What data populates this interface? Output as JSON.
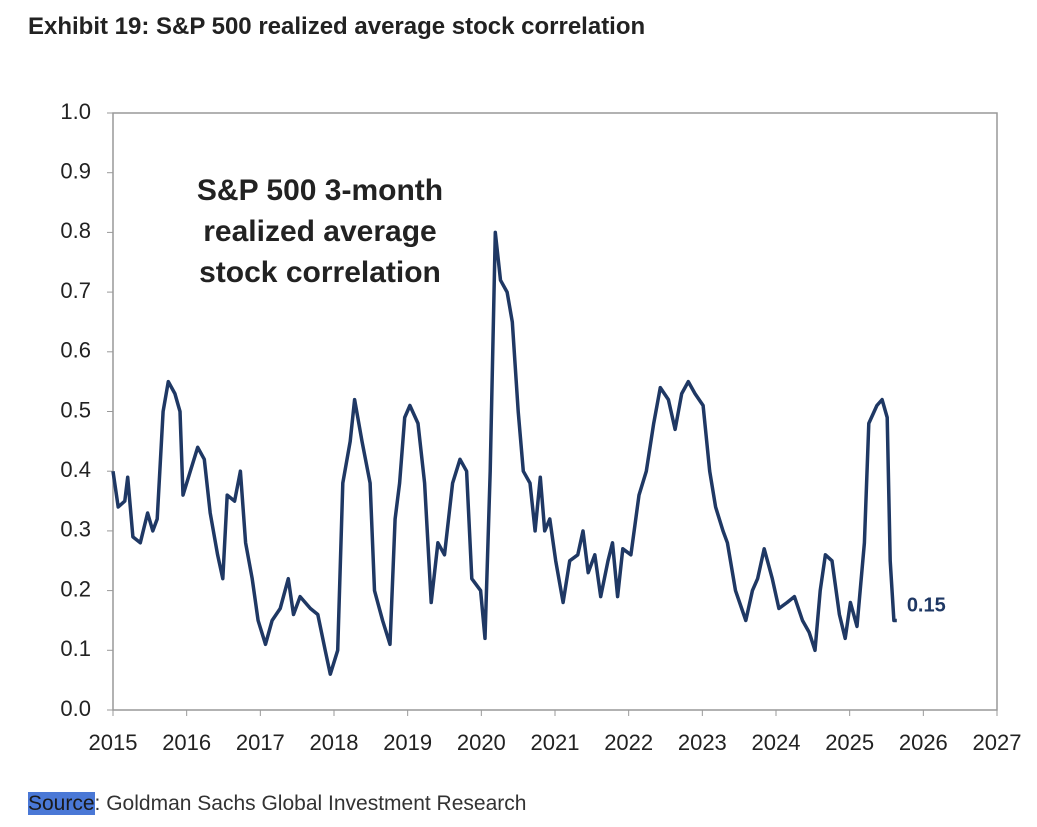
{
  "chart_data": {
    "type": "line",
    "title": "Exhibit 19: S&P 500 realized average stock correlation",
    "annotation_lines": [
      "S&P 500 3-month",
      "realized average",
      "stock correlation"
    ],
    "end_label": "0.15",
    "source_label": "Source",
    "source_text": ": Goldman Sachs Global Investment Research",
    "xlim": [
      2015,
      2027
    ],
    "xticks": [
      2015,
      2016,
      2017,
      2018,
      2019,
      2020,
      2021,
      2022,
      2023,
      2024,
      2025,
      2026,
      2027
    ],
    "ylim": [
      0,
      1
    ],
    "yticks": [
      {
        "value": 0,
        "label": "0.0"
      },
      0.1,
      0.2,
      0.3,
      0.4,
      0.5,
      0.6,
      0.7,
      0.8,
      0.9,
      {
        "value": 1,
        "label": "1.0"
      }
    ],
    "grid": false,
    "x": [
      2015.0,
      2015.07,
      2015.16,
      2015.2,
      2015.27,
      2015.37,
      2015.47,
      2015.54,
      2015.6,
      2015.68,
      2015.75,
      2015.84,
      2015.91,
      2015.95,
      2016.05,
      2016.15,
      2016.24,
      2016.32,
      2016.42,
      2016.49,
      2016.55,
      2016.65,
      2016.73,
      2016.8,
      2016.89,
      2016.97,
      2017.07,
      2017.16,
      2017.27,
      2017.38,
      2017.45,
      2017.54,
      2017.68,
      2017.78,
      2017.88,
      2017.95,
      2018.05,
      2018.12,
      2018.22,
      2018.28,
      2018.38,
      2018.49,
      2018.55,
      2018.66,
      2018.76,
      2018.83,
      2018.89,
      2018.96,
      2019.03,
      2019.14,
      2019.23,
      2019.32,
      2019.41,
      2019.5,
      2019.61,
      2019.71,
      2019.8,
      2019.87,
      2019.99,
      2020.05,
      2020.12,
      2020.19,
      2020.26,
      2020.35,
      2020.42,
      2020.5,
      2020.57,
      2020.66,
      2020.73,
      2020.8,
      2020.86,
      2020.93,
      2021.01,
      2021.11,
      2021.2,
      2021.31,
      2021.38,
      2021.45,
      2021.54,
      2021.62,
      2021.72,
      2021.78,
      2021.85,
      2021.92,
      2022.03,
      2022.14,
      2022.24,
      2022.34,
      2022.43,
      2022.54,
      2022.63,
      2022.72,
      2022.81,
      2022.9,
      2023.01,
      2023.1,
      2023.18,
      2023.28,
      2023.34,
      2023.45,
      2023.59,
      2023.68,
      2023.75,
      2023.84,
      2023.95,
      2024.04,
      2024.15,
      2024.25,
      2024.36,
      2024.45,
      2024.53,
      2024.6,
      2024.67,
      2024.76,
      2024.86,
      2024.94,
      2025.01,
      2025.1,
      2025.2,
      2025.26,
      2025.37,
      2025.44,
      2025.51,
      2025.55,
      2025.6,
      2025.64
    ],
    "series": [
      {
        "name": "S&P 500 3-month realized average stock correlation",
        "color": "#1f3864",
        "values": [
          0.4,
          0.34,
          0.35,
          0.39,
          0.29,
          0.28,
          0.33,
          0.3,
          0.32,
          0.5,
          0.55,
          0.53,
          0.5,
          0.36,
          0.4,
          0.44,
          0.42,
          0.33,
          0.26,
          0.22,
          0.36,
          0.35,
          0.4,
          0.28,
          0.22,
          0.15,
          0.11,
          0.15,
          0.17,
          0.22,
          0.16,
          0.19,
          0.17,
          0.16,
          0.1,
          0.06,
          0.1,
          0.38,
          0.45,
          0.52,
          0.45,
          0.38,
          0.2,
          0.15,
          0.11,
          0.32,
          0.38,
          0.49,
          0.51,
          0.48,
          0.38,
          0.18,
          0.28,
          0.26,
          0.38,
          0.42,
          0.4,
          0.22,
          0.2,
          0.12,
          0.4,
          0.8,
          0.72,
          0.7,
          0.65,
          0.5,
          0.4,
          0.38,
          0.3,
          0.39,
          0.3,
          0.32,
          0.25,
          0.18,
          0.25,
          0.26,
          0.3,
          0.23,
          0.26,
          0.19,
          0.25,
          0.28,
          0.19,
          0.27,
          0.26,
          0.36,
          0.4,
          0.48,
          0.54,
          0.52,
          0.47,
          0.53,
          0.55,
          0.53,
          0.51,
          0.4,
          0.34,
          0.3,
          0.28,
          0.2,
          0.15,
          0.2,
          0.22,
          0.27,
          0.22,
          0.17,
          0.18,
          0.19,
          0.15,
          0.13,
          0.1,
          0.2,
          0.26,
          0.25,
          0.16,
          0.12,
          0.18,
          0.14,
          0.28,
          0.48,
          0.51,
          0.52,
          0.49,
          0.25,
          0.15,
          0.15
        ]
      }
    ]
  }
}
